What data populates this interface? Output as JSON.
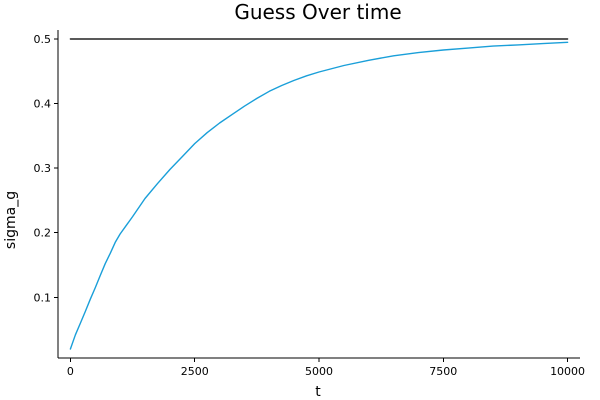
{
  "chart_data": {
    "type": "line",
    "title": "Guess Over time",
    "xlabel": "t",
    "ylabel": "sigma_g",
    "xlim": [
      -250,
      10250
    ],
    "ylim": [
      0.006,
      0.514
    ],
    "xticks": [
      0,
      2500,
      5000,
      7500,
      10000
    ],
    "xtick_labels": [
      "0",
      "2500",
      "5000",
      "7500",
      "10000"
    ],
    "yticks": [
      0.1,
      0.2,
      0.3,
      0.4,
      0.5
    ],
    "ytick_labels": [
      "0.1",
      "0.2",
      "0.3",
      "0.4",
      "0.5"
    ],
    "grid": false,
    "legend": "none",
    "series": [
      {
        "color": "#1a9fd9",
        "x": [
          0,
          100,
          200,
          300,
          400,
          500,
          600,
          700,
          800,
          900,
          1000,
          1250,
          1500,
          1750,
          2000,
          2250,
          2500,
          2750,
          3000,
          3250,
          3500,
          3750,
          4000,
          4250,
          4500,
          4750,
          5000,
          5500,
          6000,
          6500,
          7000,
          7500,
          8000,
          8500,
          9000,
          9500,
          10000
        ],
        "y": [
          0.02,
          0.042,
          0.06,
          0.078,
          0.097,
          0.115,
          0.134,
          0.152,
          0.168,
          0.185,
          0.198,
          0.225,
          0.253,
          0.276,
          0.298,
          0.318,
          0.338,
          0.355,
          0.37,
          0.383,
          0.396,
          0.408,
          0.419,
          0.428,
          0.436,
          0.443,
          0.449,
          0.459,
          0.467,
          0.474,
          0.479,
          0.483,
          0.486,
          0.489,
          0.491,
          0.493,
          0.495
        ]
      },
      {
        "color": "#222222",
        "x": [
          0,
          10000
        ],
        "y": [
          0.5,
          0.5
        ]
      }
    ]
  }
}
